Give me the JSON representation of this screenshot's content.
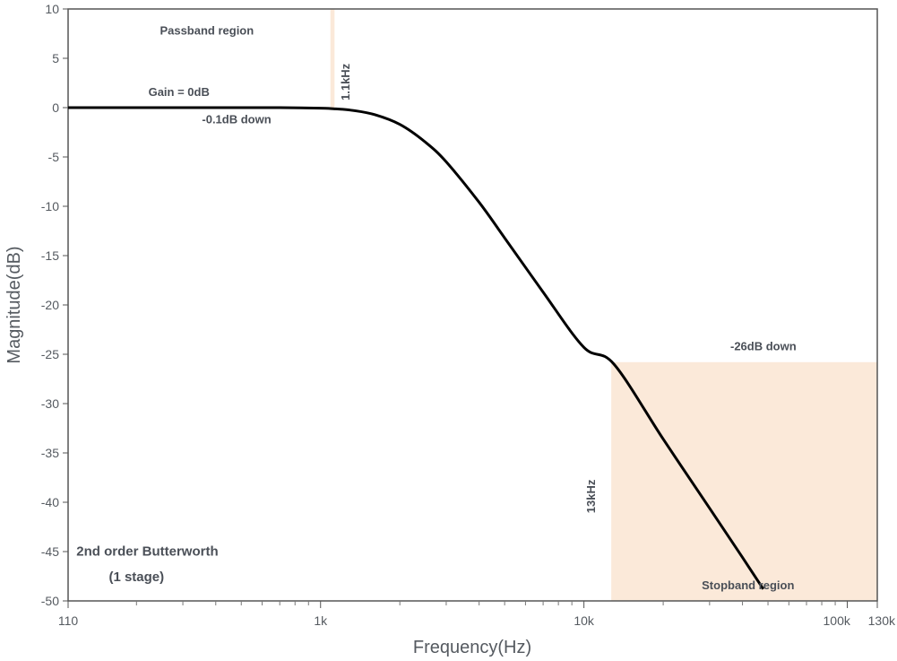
{
  "chart_data": {
    "type": "line",
    "xlabel": "Frequency(Hz)",
    "ylabel": "Magnitude(dB)",
    "x_scale": "log",
    "xlim": [
      110,
      130000
    ],
    "ylim": [
      -50,
      10
    ],
    "y_ticks": [
      10,
      5,
      0,
      -5,
      -10,
      -15,
      -20,
      -25,
      -30,
      -35,
      -40,
      -45,
      -50
    ],
    "x_tick_labels": [
      {
        "value": 110,
        "label": "110"
      },
      {
        "value": 1000,
        "label": "1k"
      },
      {
        "value": 10000,
        "label": "10k"
      },
      {
        "value": 100000,
        "label": "100k"
      },
      {
        "value": 130000,
        "label": "130k"
      }
    ],
    "x_minor_ticks": [
      200,
      300,
      400,
      500,
      600,
      700,
      800,
      900,
      2000,
      3000,
      4000,
      5000,
      6000,
      7000,
      8000,
      9000,
      20000,
      30000,
      40000,
      50000,
      60000,
      70000,
      80000,
      90000
    ],
    "series": [
      {
        "color": "#000000",
        "x": [
          110,
          200,
          400,
          700,
          1000,
          1100,
          1300,
          1600,
          2000,
          2500,
          3000,
          4000,
          5000,
          7000,
          10000,
          13000,
          20000,
          30000,
          40000,
          48000
        ],
        "y": [
          0,
          0,
          0,
          0,
          -0.05,
          -0.1,
          -0.25,
          -0.7,
          -1.7,
          -3.5,
          -5.5,
          -9.6,
          -13.2,
          -18.7,
          -24.3,
          -26.0,
          -33.6,
          -40.6,
          -45.6,
          -48.8
        ]
      }
    ],
    "shaded_regions": [
      {
        "x_from": 1090,
        "x_to": 1130,
        "y_from": 0,
        "y_to": 10,
        "color": "#fbe9d9"
      },
      {
        "x_from": 12700,
        "x_to": 130000,
        "y_from": -50,
        "y_to": -25.8,
        "color": "#fbe9d9"
      }
    ],
    "annotations": [
      {
        "text": "Passband region",
        "x": 370,
        "y": 7.4
      },
      {
        "text": "Gain = 0dB",
        "x": 290,
        "y": 1.2
      },
      {
        "text": "-0.1dB down",
        "x": 480,
        "y": -1.6
      },
      {
        "text": "1.1kHz",
        "x": 1290,
        "y": 2.6,
        "rotate": -90
      },
      {
        "text": "-26dB down",
        "x": 48000,
        "y": -24.6
      },
      {
        "text": "13kHz",
        "x": 11000,
        "y": -39.4,
        "rotate": -90
      },
      {
        "text": "Stopband region",
        "x": 42000,
        "y": -48.8
      },
      {
        "text": "2nd order Butterworth",
        "x": 220,
        "y": -45.4,
        "size": "big"
      },
      {
        "text": "(1 stage)",
        "x": 200,
        "y": -48.0,
        "size": "big"
      }
    ],
    "grid": false,
    "colors": {
      "line": "#000000",
      "shade": "#fbe9d9",
      "frame": "#555555",
      "text": "#555a60"
    }
  }
}
